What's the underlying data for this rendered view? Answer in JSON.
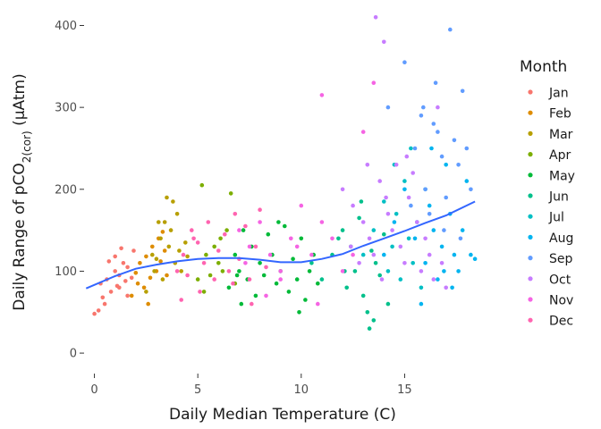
{
  "chart_data": {
    "type": "scatter",
    "title": "",
    "xlabel": "Daily Median Temperature (C)",
    "ylabel": {
      "prefix": "Daily Range of pCO",
      "subscript": "2(cor)",
      "suffix": " (µAtm)"
    },
    "xlim": [
      -0.5,
      18.7
    ],
    "ylim": [
      -25,
      418
    ],
    "xticks": [
      0,
      5,
      10,
      15
    ],
    "yticks": [
      0,
      100,
      200,
      300,
      400
    ],
    "grid": false,
    "legend": {
      "title": "Month",
      "placement": "right",
      "entries": [
        {
          "label": "Jan",
          "color": "#F8766D"
        },
        {
          "label": "Feb",
          "color": "#DE8C00"
        },
        {
          "label": "Mar",
          "color": "#B79F00"
        },
        {
          "label": "Apr",
          "color": "#7CAE00"
        },
        {
          "label": "May",
          "color": "#00BA38"
        },
        {
          "label": "Jun",
          "color": "#00C08B"
        },
        {
          "label": "Jul",
          "color": "#00BFC4"
        },
        {
          "label": "Aug",
          "color": "#00B4F0"
        },
        {
          "label": "Sep",
          "color": "#619CFF"
        },
        {
          "label": "Oct",
          "color": "#C77CFF"
        },
        {
          "label": "Nov",
          "color": "#F564E3"
        },
        {
          "label": "Dec",
          "color": "#FF64B0"
        }
      ]
    },
    "trend": {
      "name": "",
      "color": "#3366FF",
      "x": [
        -0.4,
        1,
        2,
        3,
        4,
        5,
        6,
        7,
        8,
        9,
        10,
        11,
        12,
        13,
        14,
        15,
        16,
        17,
        18.4
      ],
      "y": [
        79,
        94,
        103,
        108,
        112,
        115,
        116,
        116,
        114,
        111,
        111,
        115,
        121,
        131,
        140,
        149,
        159,
        168,
        185
      ]
    },
    "series": [
      {
        "name": "Jan",
        "points": [
          [
            0,
            48
          ],
          [
            0.2,
            52
          ],
          [
            0.3,
            85
          ],
          [
            0.5,
            60
          ],
          [
            0.6,
            90
          ],
          [
            0.8,
            75
          ],
          [
            1.0,
            100
          ],
          [
            1.0,
            118
          ],
          [
            1.1,
            82
          ],
          [
            1.2,
            95
          ],
          [
            1.3,
            128
          ],
          [
            1.4,
            110
          ],
          [
            1.5,
            88
          ],
          [
            1.6,
            105
          ],
          [
            1.6,
            70
          ],
          [
            1.8,
            92
          ],
          [
            1.9,
            125
          ],
          [
            0.4,
            68
          ],
          [
            0.7,
            112
          ],
          [
            1.2,
            80
          ]
        ]
      },
      {
        "name": "Feb",
        "points": [
          [
            1.8,
            70
          ],
          [
            2.0,
            98
          ],
          [
            2.2,
            110
          ],
          [
            2.4,
            80
          ],
          [
            2.5,
            118
          ],
          [
            2.7,
            92
          ],
          [
            2.8,
            130
          ],
          [
            3.0,
            100
          ],
          [
            3.1,
            140
          ],
          [
            3.2,
            112
          ],
          [
            3.4,
            125
          ],
          [
            3.5,
            95
          ],
          [
            2.6,
            60
          ],
          [
            3.3,
            148
          ],
          [
            2.1,
            85
          ]
        ]
      },
      {
        "name": "Mar",
        "points": [
          [
            2.5,
            75
          ],
          [
            2.8,
            120
          ],
          [
            3.0,
            115
          ],
          [
            3.2,
            140
          ],
          [
            3.4,
            160
          ],
          [
            3.5,
            190
          ],
          [
            3.6,
            130
          ],
          [
            3.7,
            150
          ],
          [
            3.8,
            185
          ],
          [
            3.9,
            110
          ],
          [
            4.0,
            170
          ],
          [
            4.1,
            125
          ],
          [
            4.2,
            100
          ],
          [
            3.3,
            90
          ],
          [
            3.1,
            160
          ],
          [
            4.4,
            135
          ],
          [
            4.5,
            118
          ],
          [
            2.9,
            100
          ]
        ]
      },
      {
        "name": "Apr",
        "points": [
          [
            5.0,
            90
          ],
          [
            5.2,
            205
          ],
          [
            5.4,
            120
          ],
          [
            5.6,
            95
          ],
          [
            5.8,
            130
          ],
          [
            6.0,
            110
          ],
          [
            6.2,
            100
          ],
          [
            6.4,
            150
          ],
          [
            6.6,
            195
          ],
          [
            6.8,
            85
          ],
          [
            5.3,
            75
          ],
          [
            6.1,
            140
          ]
        ]
      },
      {
        "name": "May",
        "points": [
          [
            6.5,
            80
          ],
          [
            6.8,
            120
          ],
          [
            7.0,
            100
          ],
          [
            7.2,
            150
          ],
          [
            7.4,
            90
          ],
          [
            7.6,
            130
          ],
          [
            7.8,
            70
          ],
          [
            8.0,
            110
          ],
          [
            8.2,
            95
          ],
          [
            8.4,
            145
          ],
          [
            8.6,
            120
          ],
          [
            8.8,
            85
          ],
          [
            9.0,
            100
          ],
          [
            9.2,
            155
          ],
          [
            9.4,
            75
          ],
          [
            9.6,
            115
          ],
          [
            9.8,
            90
          ],
          [
            10.0,
            140
          ],
          [
            10.2,
            65
          ],
          [
            10.4,
            100
          ],
          [
            10.6,
            120
          ],
          [
            10.8,
            85
          ],
          [
            7.1,
            60
          ],
          [
            8.9,
            160
          ],
          [
            9.9,
            50
          ],
          [
            6.9,
            95
          ]
        ]
      },
      {
        "name": "Jun",
        "points": [
          [
            10.5,
            110
          ],
          [
            11.0,
            90
          ],
          [
            11.5,
            120
          ],
          [
            12.0,
            150
          ],
          [
            12.2,
            80
          ],
          [
            12.4,
            130
          ],
          [
            12.6,
            100
          ],
          [
            12.8,
            165
          ],
          [
            13.0,
            70
          ],
          [
            13.2,
            50
          ],
          [
            13.3,
            30
          ],
          [
            13.5,
            40
          ],
          [
            13.6,
            110
          ],
          [
            13.8,
            95
          ],
          [
            14.0,
            145
          ],
          [
            14.2,
            60
          ],
          [
            11.8,
            140
          ],
          [
            12.9,
            185
          ],
          [
            13.4,
            125
          ],
          [
            12.1,
            100
          ]
        ]
      },
      {
        "name": "Jul",
        "points": [
          [
            13.0,
            120
          ],
          [
            13.5,
            150
          ],
          [
            14.0,
            185
          ],
          [
            14.2,
            100
          ],
          [
            14.4,
            130
          ],
          [
            14.6,
            170
          ],
          [
            14.8,
            90
          ],
          [
            15.0,
            210
          ],
          [
            15.2,
            140
          ],
          [
            15.4,
            110
          ],
          [
            15.6,
            160
          ],
          [
            15.8,
            80
          ],
          [
            16.0,
            200
          ],
          [
            14.5,
            230
          ],
          [
            15.3,
            250
          ]
        ]
      },
      {
        "name": "Aug",
        "points": [
          [
            14.0,
            120
          ],
          [
            14.5,
            160
          ],
          [
            15.0,
            200
          ],
          [
            15.5,
            140
          ],
          [
            16.0,
            110
          ],
          [
            16.2,
            180
          ],
          [
            16.4,
            150
          ],
          [
            16.6,
            90
          ],
          [
            16.8,
            130
          ],
          [
            17.0,
            230
          ],
          [
            17.2,
            170
          ],
          [
            17.4,
            120
          ],
          [
            17.6,
            100
          ],
          [
            17.8,
            150
          ],
          [
            18.0,
            210
          ],
          [
            18.2,
            120
          ],
          [
            18.4,
            115
          ],
          [
            16.3,
            250
          ],
          [
            15.8,
            60
          ],
          [
            17.3,
            80
          ],
          [
            16.9,
            100
          ]
        ]
      },
      {
        "name": "Sep",
        "points": [
          [
            14.2,
            300
          ],
          [
            15.0,
            355
          ],
          [
            15.5,
            250
          ],
          [
            15.8,
            290
          ],
          [
            16.0,
            200
          ],
          [
            16.2,
            170
          ],
          [
            16.4,
            280
          ],
          [
            16.6,
            270
          ],
          [
            16.8,
            240
          ],
          [
            17.0,
            190
          ],
          [
            17.2,
            395
          ],
          [
            17.4,
            260
          ],
          [
            17.6,
            230
          ],
          [
            17.8,
            320
          ],
          [
            18.0,
            250
          ],
          [
            18.2,
            200
          ],
          [
            16.5,
            330
          ],
          [
            15.3,
            180
          ],
          [
            16.9,
            150
          ],
          [
            17.7,
            140
          ],
          [
            15.9,
            300
          ]
        ]
      },
      {
        "name": "Oct",
        "points": [
          [
            12.0,
            200
          ],
          [
            12.5,
            180
          ],
          [
            13.0,
            160
          ],
          [
            13.3,
            140
          ],
          [
            13.5,
            120
          ],
          [
            13.6,
            410
          ],
          [
            13.8,
            210
          ],
          [
            14.0,
            380
          ],
          [
            14.2,
            170
          ],
          [
            14.4,
            150
          ],
          [
            14.6,
            230
          ],
          [
            14.8,
            130
          ],
          [
            15.0,
            110
          ],
          [
            15.2,
            190
          ],
          [
            15.4,
            220
          ],
          [
            15.6,
            160
          ],
          [
            15.8,
            100
          ],
          [
            16.0,
            140
          ],
          [
            16.2,
            120
          ],
          [
            16.4,
            90
          ],
          [
            16.6,
            300
          ],
          [
            16.8,
            110
          ],
          [
            17.0,
            80
          ],
          [
            13.2,
            230
          ],
          [
            14.1,
            190
          ],
          [
            12.8,
            110
          ],
          [
            15.1,
            240
          ],
          [
            13.9,
            90
          ],
          [
            12.4,
            130
          ]
        ]
      },
      {
        "name": "Nov",
        "points": [
          [
            7.0,
            150
          ],
          [
            7.5,
            130
          ],
          [
            8.0,
            160
          ],
          [
            8.5,
            120
          ],
          [
            9.0,
            100
          ],
          [
            9.5,
            140
          ],
          [
            10.0,
            180
          ],
          [
            10.5,
            120
          ],
          [
            11.0,
            160
          ],
          [
            11.5,
            140
          ],
          [
            12.0,
            100
          ],
          [
            12.5,
            120
          ],
          [
            13.0,
            270
          ],
          [
            13.5,
            330
          ],
          [
            11.0,
            315
          ],
          [
            9.0,
            90
          ],
          [
            10.8,
            60
          ],
          [
            8.3,
            70
          ],
          [
            9.8,
            130
          ],
          [
            7.3,
            110
          ]
        ]
      },
      {
        "name": "Dec",
        "points": [
          [
            4.0,
            100
          ],
          [
            4.3,
            120
          ],
          [
            4.5,
            95
          ],
          [
            4.7,
            150
          ],
          [
            5.0,
            135
          ],
          [
            5.3,
            110
          ],
          [
            5.5,
            160
          ],
          [
            5.8,
            90
          ],
          [
            6.0,
            125
          ],
          [
            6.3,
            145
          ],
          [
            6.5,
            100
          ],
          [
            6.8,
            170
          ],
          [
            7.0,
            115
          ],
          [
            7.3,
            155
          ],
          [
            7.5,
            90
          ],
          [
            7.8,
            130
          ],
          [
            8.0,
            175
          ],
          [
            8.3,
            105
          ],
          [
            4.2,
            65
          ],
          [
            5.1,
            75
          ],
          [
            6.7,
            85
          ],
          [
            7.6,
            60
          ],
          [
            4.8,
            140
          ]
        ]
      }
    ]
  }
}
